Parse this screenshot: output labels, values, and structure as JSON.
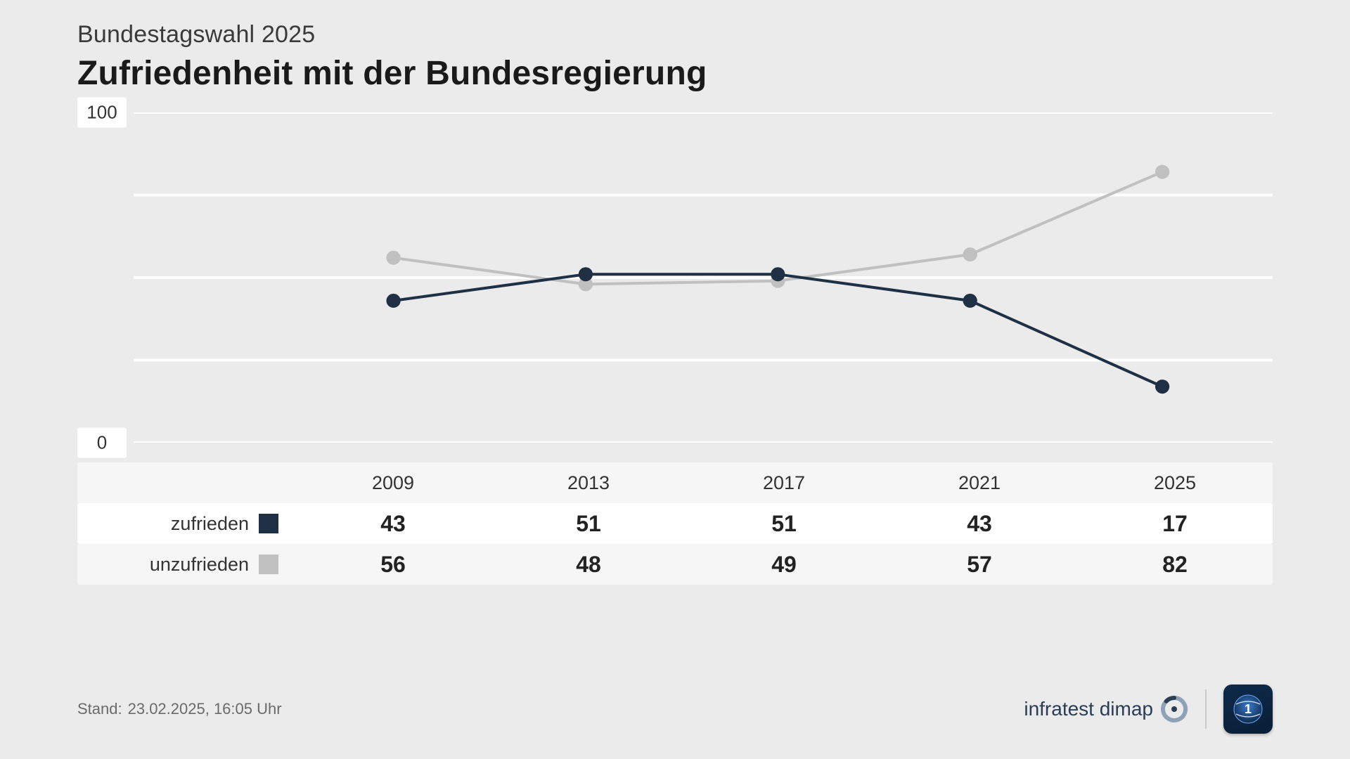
{
  "header": {
    "subtitle": "Bundestagswahl 2025",
    "title": "Zufriedenheit mit der Bundesregierung"
  },
  "chart": {
    "type": "line",
    "background_color": "#ebebeb",
    "plot_background": "#ebebeb",
    "gridline_color": "#ffffff",
    "gridline_width": 4,
    "ylim": [
      0,
      100
    ],
    "yticks": [
      0,
      100
    ],
    "yminor": [
      25,
      50,
      75
    ],
    "ytick_bg": "#ffffff",
    "categories": [
      "2009",
      "2013",
      "2017",
      "2021",
      "2025"
    ],
    "series": [
      {
        "name": "zufrieden",
        "color": "#1f3045",
        "line_width": 4,
        "marker_size": 10,
        "values": [
          43,
          51,
          51,
          43,
          17
        ]
      },
      {
        "name": "unzufrieden",
        "color": "#c0c0c0",
        "line_width": 4,
        "marker_size": 10,
        "values": [
          56,
          48,
          49,
          57,
          82
        ]
      }
    ]
  },
  "footer": {
    "stand_label": "Stand:",
    "stand_value": "23.02.2025, 16:05 Uhr",
    "brand": "infratest dimap"
  }
}
